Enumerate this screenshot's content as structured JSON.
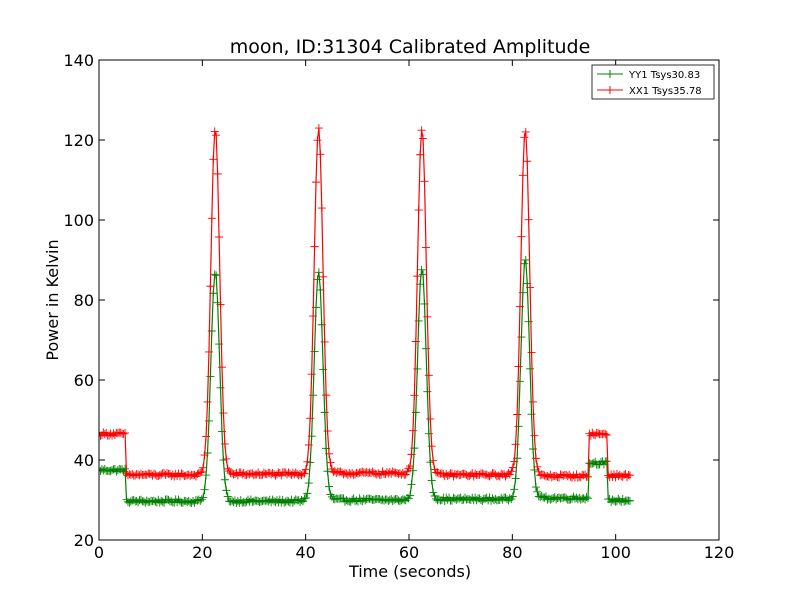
{
  "chart_data": {
    "type": "line",
    "title": "moon, ID:31304 Calibrated Amplitude",
    "xlabel": "Time (seconds)",
    "ylabel": "Power in Kelvin",
    "xlim": [
      0,
      120
    ],
    "ylim": [
      20,
      140
    ],
    "xticks": [
      "0",
      "20",
      "40",
      "60",
      "80",
      "100",
      "120"
    ],
    "yticks": [
      "20",
      "40",
      "60",
      "80",
      "100",
      "120",
      "140"
    ],
    "grid": false,
    "legend_position": "top-right",
    "marker": "plus",
    "series": [
      {
        "name": "YY1 Tsys30.83",
        "color": "#008000",
        "base_segments": [
          {
            "x": [
              0,
              5.2
            ],
            "y": 37.5
          },
          {
            "x": [
              5.4,
              19.5
            ],
            "y": 29.7
          },
          {
            "x": [
              25.5,
              39.5
            ],
            "y": 29.7
          },
          {
            "x": [
              45.5,
              59.5
            ],
            "y": 30.0
          },
          {
            "x": [
              65.5,
              79.5
            ],
            "y": 30.2
          },
          {
            "x": [
              85.5,
              94.8
            ],
            "y": 30.5
          },
          {
            "x": [
              95.0,
              98.2
            ],
            "y": 39.3
          },
          {
            "x": [
              98.4,
              103
            ],
            "y": 29.9
          }
        ],
        "peaks": [
          {
            "x": 22.5,
            "y": 87.0
          },
          {
            "x": 42.5,
            "y": 87.0
          },
          {
            "x": 62.5,
            "y": 88.0
          },
          {
            "x": 82.5,
            "y": 90.0
          }
        ]
      },
      {
        "name": "XX1 Tsys35.78",
        "color": "#ff0000",
        "base_segments": [
          {
            "x": [
              0,
              5.2
            ],
            "y": 46.5
          },
          {
            "x": [
              5.4,
              19.5
            ],
            "y": 36.3
          },
          {
            "x": [
              25.5,
              39.5
            ],
            "y": 36.5
          },
          {
            "x": [
              45.5,
              59.5
            ],
            "y": 36.7
          },
          {
            "x": [
              65.5,
              79.5
            ],
            "y": 36.3
          },
          {
            "x": [
              85.5,
              94.8
            ],
            "y": 36.0
          },
          {
            "x": [
              95.0,
              98.2
            ],
            "y": 46.5
          },
          {
            "x": [
              98.4,
              103
            ],
            "y": 36.1
          }
        ],
        "peaks": [
          {
            "x": 22.5,
            "y": 123.0
          },
          {
            "x": 42.5,
            "y": 123.0
          },
          {
            "x": 62.5,
            "y": 123.0
          },
          {
            "x": 82.5,
            "y": 123.0
          }
        ]
      }
    ]
  }
}
